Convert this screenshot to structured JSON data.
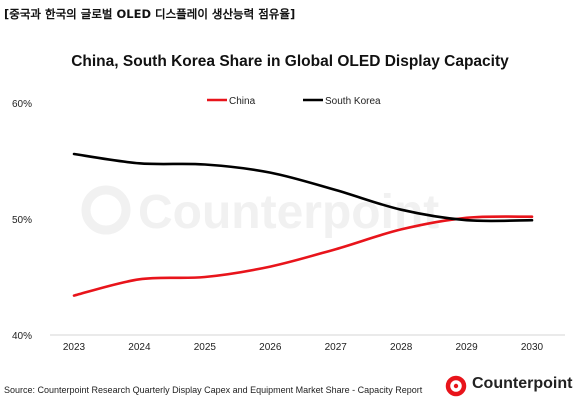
{
  "header": {
    "korean_title": "[중국과 한국의 글로벌 OLED 디스플레이 생산능력 점유율]"
  },
  "footer": {
    "source": "Source: Counterpoint  Research Quarterly Display Capex and Equipment  Market Share - Capacity Report",
    "brand": "Counterpoint"
  },
  "watermark": "Counterpoint",
  "colors": {
    "china": "#e8141b",
    "south_korea": "#000000",
    "brand": "#e8141b"
  },
  "chart_data": {
    "type": "line",
    "title": "China, South Korea Share in Global OLED Display Capacity",
    "xlabel": "",
    "ylabel": "",
    "x": [
      2023,
      2024,
      2025,
      2026,
      2027,
      2028,
      2029,
      2030
    ],
    "x_tick_labels": [
      "2023",
      "2024",
      "2025",
      "2026",
      "2027",
      "2028",
      "2029",
      "2030"
    ],
    "ylim": [
      40,
      60
    ],
    "y_ticks": [
      40,
      50,
      60
    ],
    "y_tick_labels": [
      "40%",
      "50%",
      "60%"
    ],
    "grid": false,
    "legend_position": "top",
    "series": [
      {
        "name": "China",
        "color": "#e8141b",
        "values": [
          43.4,
          44.8,
          45.0,
          45.9,
          47.4,
          49.1,
          50.1,
          50.2
        ]
      },
      {
        "name": "South Korea",
        "color": "#000000",
        "values": [
          55.6,
          54.8,
          54.7,
          54.0,
          52.5,
          50.8,
          49.9,
          49.9
        ]
      }
    ]
  }
}
